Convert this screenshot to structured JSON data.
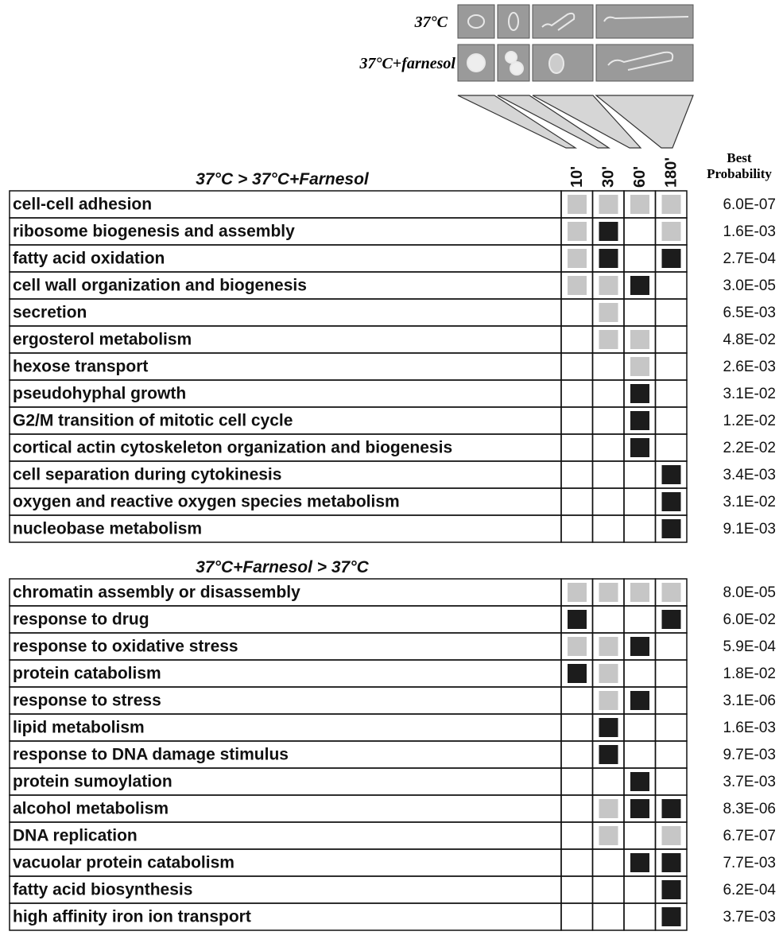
{
  "header": {
    "condition_labels": [
      "37°C",
      "37°C+farnesol"
    ],
    "time_points": [
      "10'",
      "30'",
      "60'",
      "180'"
    ],
    "best_probability": [
      "Best",
      "Probability"
    ]
  },
  "cell_colors": {
    "black": "#1c1c1c",
    "gray": "#c6c6c6",
    "white": "#ffffff"
  },
  "sections": [
    {
      "title": "37°C > 37°C+Farnesol",
      "rows": [
        {
          "label": "cell-cell adhesion",
          "cells": [
            "gray",
            "gray",
            "gray",
            "gray"
          ],
          "probability": "6.0E-07"
        },
        {
          "label": "ribosome biogenesis and assembly",
          "cells": [
            "gray",
            "black",
            "white",
            "gray"
          ],
          "probability": "1.6E-03"
        },
        {
          "label": "fatty acid oxidation",
          "cells": [
            "gray",
            "black",
            "white",
            "black"
          ],
          "probability": "2.7E-04"
        },
        {
          "label": "cell wall organization and biogenesis",
          "cells": [
            "gray",
            "gray",
            "black",
            "white"
          ],
          "probability": "3.0E-05"
        },
        {
          "label": "secretion",
          "cells": [
            "white",
            "gray",
            "white",
            "white"
          ],
          "probability": "6.5E-03"
        },
        {
          "label": "ergosterol metabolism",
          "cells": [
            "white",
            "gray",
            "gray",
            "white"
          ],
          "probability": "4.8E-02"
        },
        {
          "label": "hexose transport",
          "cells": [
            "white",
            "white",
            "gray",
            "white"
          ],
          "probability": "2.6E-03"
        },
        {
          "label": "pseudohyphal growth",
          "cells": [
            "white",
            "white",
            "black",
            "white"
          ],
          "probability": "3.1E-02"
        },
        {
          "label": "G2/M transition of mitotic cell cycle",
          "cells": [
            "white",
            "white",
            "black",
            "white"
          ],
          "probability": "1.2E-02"
        },
        {
          "label": "cortical actin cytoskeleton organization and biogenesis",
          "cells": [
            "white",
            "white",
            "black",
            "white"
          ],
          "probability": "2.2E-02"
        },
        {
          "label": "cell separation during cytokinesis",
          "cells": [
            "white",
            "white",
            "white",
            "black"
          ],
          "probability": "3.4E-03"
        },
        {
          "label": "oxygen and reactive oxygen species metabolism",
          "cells": [
            "white",
            "white",
            "white",
            "black"
          ],
          "probability": "3.1E-02"
        },
        {
          "label": "nucleobase metabolism",
          "cells": [
            "white",
            "white",
            "white",
            "black"
          ],
          "probability": "9.1E-03"
        }
      ]
    },
    {
      "title": "37°C+Farnesol > 37°C",
      "rows": [
        {
          "label": "chromatin assembly or disassembly",
          "cells": [
            "gray",
            "gray",
            "gray",
            "gray"
          ],
          "probability": "8.0E-05"
        },
        {
          "label": "response to drug",
          "cells": [
            "black",
            "white",
            "white",
            "black"
          ],
          "probability": "6.0E-02"
        },
        {
          "label": "response to oxidative stress",
          "cells": [
            "gray",
            "gray",
            "black",
            "white"
          ],
          "probability": "5.9E-04"
        },
        {
          "label": "protein catabolism",
          "cells": [
            "black",
            "gray",
            "white",
            "white"
          ],
          "probability": "1.8E-02"
        },
        {
          "label": "response to stress",
          "cells": [
            "white",
            "gray",
            "black",
            "white"
          ],
          "probability": "3.1E-06"
        },
        {
          "label": "lipid metabolism",
          "cells": [
            "white",
            "black",
            "white",
            "white"
          ],
          "probability": "1.6E-03"
        },
        {
          "label": "response to DNA damage stimulus",
          "cells": [
            "white",
            "black",
            "white",
            "white"
          ],
          "probability": "9.7E-03"
        },
        {
          "label": "protein sumoylation",
          "cells": [
            "white",
            "white",
            "black",
            "white"
          ],
          "probability": "3.7E-03"
        },
        {
          "label": "alcohol metabolism",
          "cells": [
            "white",
            "gray",
            "black",
            "black"
          ],
          "probability": "8.3E-06"
        },
        {
          "label": "DNA replication",
          "cells": [
            "white",
            "gray",
            "white",
            "gray"
          ],
          "probability": "6.7E-07"
        },
        {
          "label": "vacuolar protein catabolism",
          "cells": [
            "white",
            "white",
            "black",
            "black"
          ],
          "probability": "7.7E-03"
        },
        {
          "label": "fatty acid biosynthesis",
          "cells": [
            "white",
            "white",
            "white",
            "black"
          ],
          "probability": "6.2E-04"
        },
        {
          "label": "high affinity iron ion transport",
          "cells": [
            "white",
            "white",
            "white",
            "black"
          ],
          "probability": "3.7E-03"
        }
      ]
    }
  ]
}
